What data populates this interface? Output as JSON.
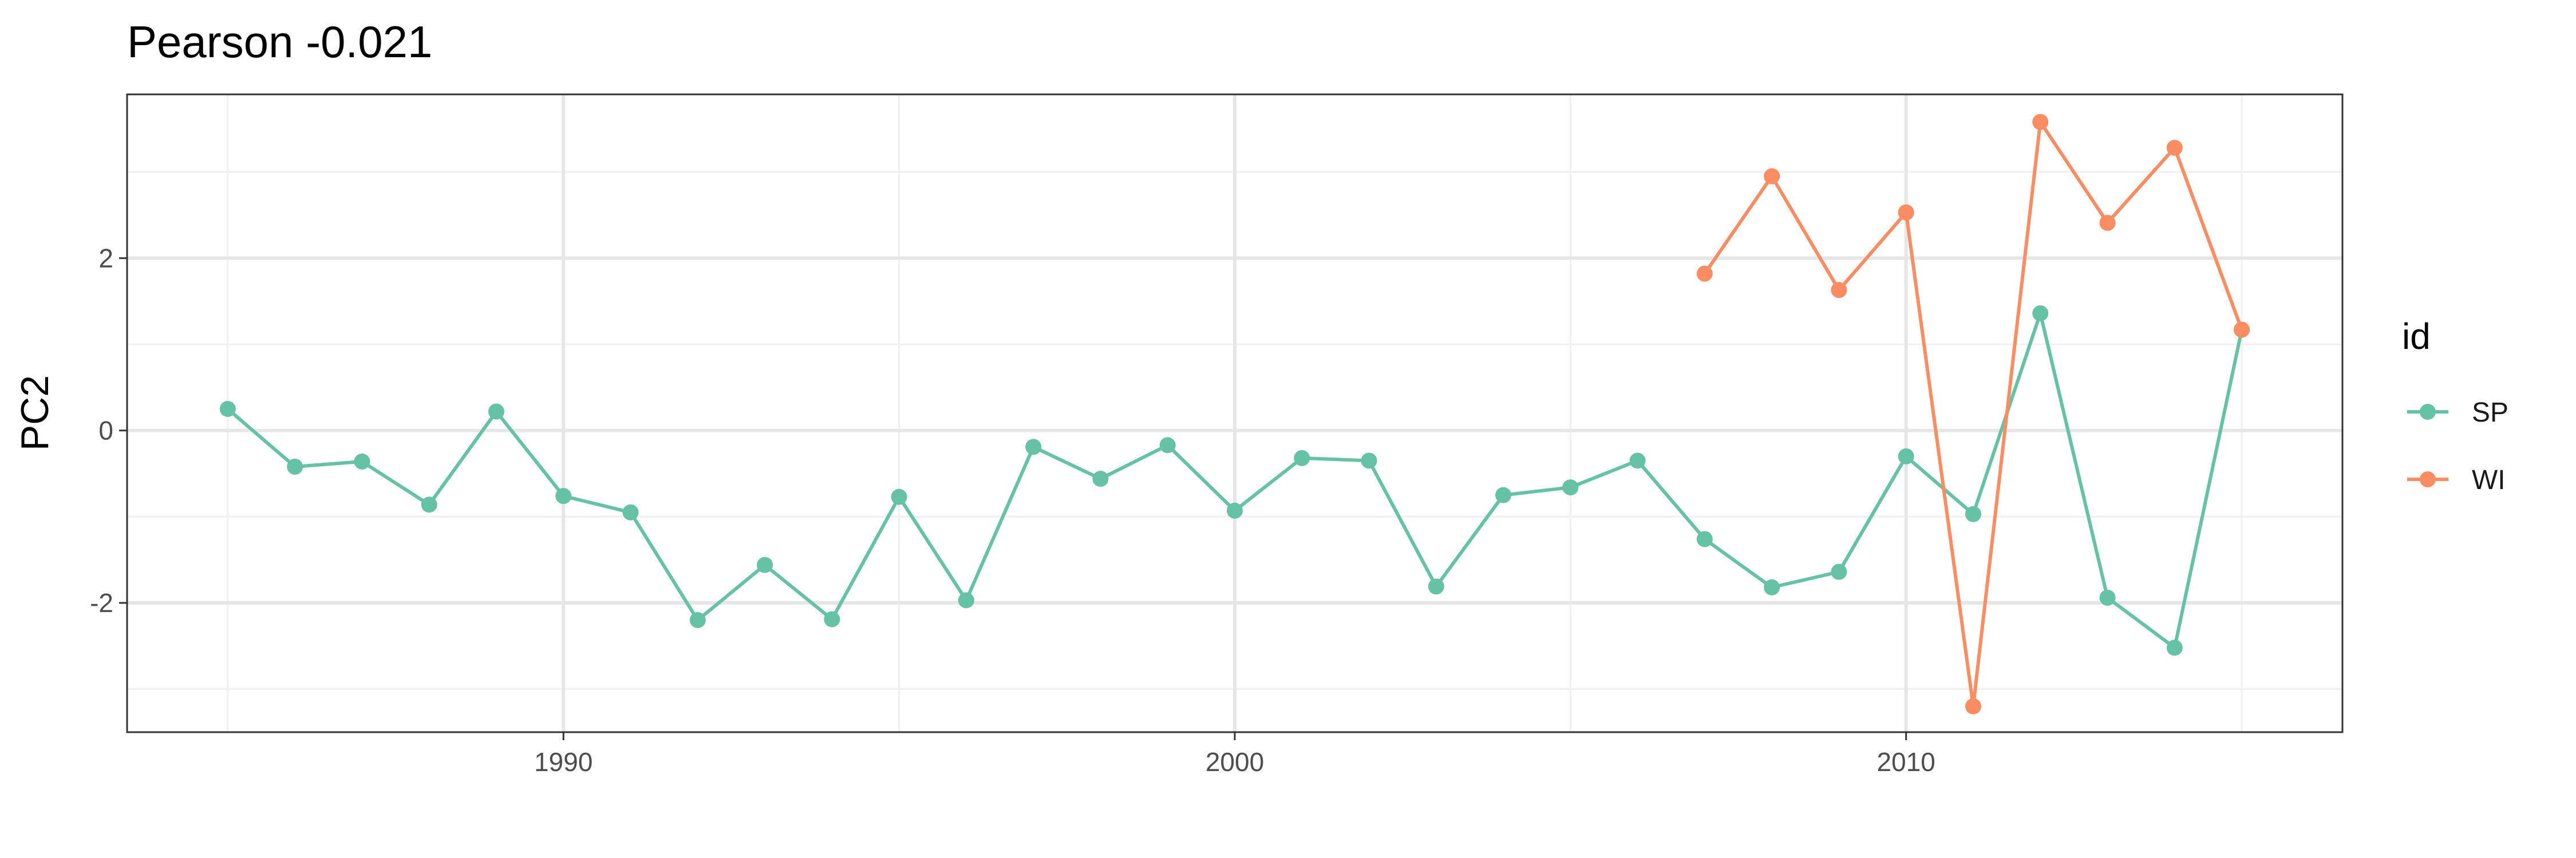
{
  "chart_data": {
    "type": "line",
    "title": "Pearson -0.021",
    "xlabel": "",
    "ylabel": "PC2",
    "xlim": [
      1983.5,
      2016.5
    ],
    "ylim": [
      -3.5,
      3.9
    ],
    "x_ticks": [
      1990,
      2000,
      2010
    ],
    "x_tick_labels": [
      "1990",
      "2000",
      "2010"
    ],
    "x_minor_ticks": [
      1985,
      1995,
      2005,
      2015
    ],
    "y_ticks": [
      -2,
      0,
      2
    ],
    "y_tick_labels": [
      "-2",
      "0",
      "2"
    ],
    "y_minor_ticks": [
      -3,
      -1,
      1,
      3
    ],
    "grid": true,
    "legend": {
      "title": "id",
      "position": "right"
    },
    "series": [
      {
        "name": "SP",
        "color": "#66c2a5",
        "x": [
          1985,
          1986,
          1987,
          1988,
          1989,
          1990,
          1991,
          1992,
          1993,
          1994,
          1995,
          1996,
          1997,
          1998,
          1999,
          2000,
          2001,
          2002,
          2003,
          2004,
          2005,
          2006,
          2007,
          2008,
          2009,
          2010,
          2011,
          2012,
          2013,
          2014,
          2015
        ],
        "y": [
          0.25,
          -0.42,
          -0.36,
          -0.86,
          0.22,
          -0.76,
          -0.95,
          -2.2,
          -1.56,
          -2.19,
          -0.77,
          -1.97,
          -0.19,
          -0.56,
          -0.17,
          -0.93,
          -0.32,
          -0.35,
          -1.81,
          -0.75,
          -0.66,
          -0.35,
          -1.26,
          -1.82,
          -1.64,
          -0.3,
          -0.97,
          1.36,
          -1.94,
          -2.52,
          1.17
        ]
      },
      {
        "name": "WI",
        "color": "#fc8d62",
        "x": [
          2007,
          2008,
          2009,
          2010,
          2011,
          2012,
          2013,
          2014,
          2015
        ],
        "y": [
          1.82,
          2.95,
          1.63,
          2.53,
          -3.2,
          3.58,
          2.41,
          3.28,
          1.17
        ]
      }
    ]
  }
}
